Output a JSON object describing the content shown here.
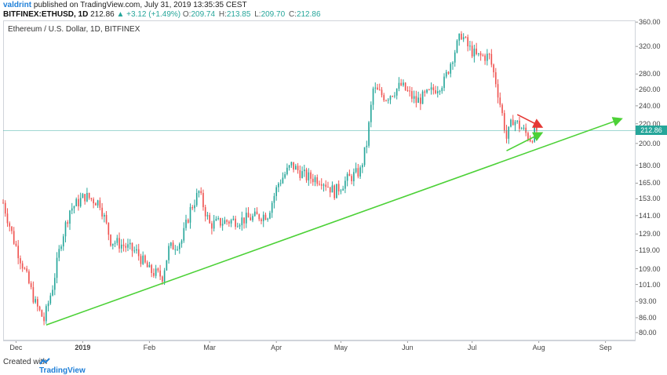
{
  "header": {
    "author": "valdrint",
    "published": "published on TradingView.com, July 31, 2019 13:35:35 CEST",
    "symbol": "BITFINEX:ETHUSD, 1D",
    "last": "212.86",
    "change": "▲ +3.12 (+1.49%)",
    "o_label": "O:",
    "o_value": "209.74",
    "h_label": "H:",
    "h_value": "213.85",
    "l_label": "L:",
    "l_value": "209.70",
    "c_label": "C:",
    "c_value": "212.86"
  },
  "legend_title": "Ethereum / U.S. Dollar, 1D, BITFINEX",
  "price_tag": "212.86",
  "footer": {
    "text": "Created with",
    "logo": "TradingView"
  },
  "colors": {
    "up": "#26a69a",
    "down": "#ef5350",
    "trend": "#4cd137",
    "wedge_top": "#e53935",
    "current": "#26a69a"
  },
  "chart_data": {
    "type": "candlestick",
    "y_scale": "log",
    "ylim": [
      77,
      363
    ],
    "y_ticks": [
      "80.00",
      "86.00",
      "93.00",
      "101.00",
      "109.00",
      "119.00",
      "129.00",
      "141.00",
      "153.00",
      "165.00",
      "180.00",
      "200.00",
      "220.00",
      "240.00",
      "260.00",
      "280.00",
      "320.00",
      "360.00"
    ],
    "x_ticks": [
      "Dec",
      "2019",
      "Feb",
      "Mar",
      "Apr",
      "May",
      "Jun",
      "Jul",
      "Aug",
      "Sep"
    ],
    "x_range": [
      "2018-11-25",
      "2019-09-15"
    ],
    "last_price": 212.86,
    "ohlc_daily_close_path": [
      [
        "2018-11-25",
        150
      ],
      [
        "2018-11-30",
        125
      ],
      [
        "2018-12-05",
        108
      ],
      [
        "2018-12-10",
        92
      ],
      [
        "2018-12-14",
        85
      ],
      [
        "2018-12-18",
        100
      ],
      [
        "2018-12-22",
        125
      ],
      [
        "2018-12-26",
        145
      ],
      [
        "2019-01-02",
        155
      ],
      [
        "2019-01-09",
        150
      ],
      [
        "2019-01-14",
        125
      ],
      [
        "2019-01-20",
        122
      ],
      [
        "2019-01-26",
        118
      ],
      [
        "2019-02-01",
        108
      ],
      [
        "2019-02-07",
        105
      ],
      [
        "2019-02-10",
        120
      ],
      [
        "2019-02-16",
        125
      ],
      [
        "2019-02-20",
        145
      ],
      [
        "2019-02-24",
        158
      ],
      [
        "2019-03-01",
        135
      ],
      [
        "2019-03-08",
        137
      ],
      [
        "2019-03-15",
        138
      ],
      [
        "2019-03-22",
        140
      ],
      [
        "2019-03-28",
        142
      ],
      [
        "2019-04-02",
        165
      ],
      [
        "2019-04-08",
        180
      ],
      [
        "2019-04-15",
        170
      ],
      [
        "2019-04-22",
        168
      ],
      [
        "2019-04-28",
        158
      ],
      [
        "2019-05-04",
        168
      ],
      [
        "2019-05-10",
        175
      ],
      [
        "2019-05-13",
        200
      ],
      [
        "2019-05-16",
        260
      ],
      [
        "2019-05-22",
        250
      ],
      [
        "2019-05-29",
        265
      ],
      [
        "2019-06-05",
        245
      ],
      [
        "2019-06-11",
        255
      ],
      [
        "2019-06-18",
        270
      ],
      [
        "2019-06-22",
        305
      ],
      [
        "2019-06-26",
        340
      ],
      [
        "2019-06-29",
        320
      ],
      [
        "2019-07-03",
        305
      ],
      [
        "2019-07-09",
        305
      ],
      [
        "2019-07-12",
        270
      ],
      [
        "2019-07-15",
        230
      ],
      [
        "2019-07-17",
        205
      ],
      [
        "2019-07-20",
        225
      ],
      [
        "2019-07-24",
        215
      ],
      [
        "2019-07-28",
        205
      ],
      [
        "2019-07-31",
        212.86
      ]
    ],
    "annotations": [
      {
        "type": "trendline",
        "color": "green",
        "from": [
          "2018-12-15",
          83
        ],
        "to": [
          "2019-09-08",
          225
        ]
      },
      {
        "type": "wedge_upper",
        "color": "red",
        "from": [
          "2019-07-22",
          230
        ],
        "to": [
          "2019-08-02",
          217
        ]
      },
      {
        "type": "wedge_lower",
        "color": "green",
        "from": [
          "2019-07-17",
          193
        ],
        "to": [
          "2019-08-02",
          210
        ]
      }
    ]
  }
}
